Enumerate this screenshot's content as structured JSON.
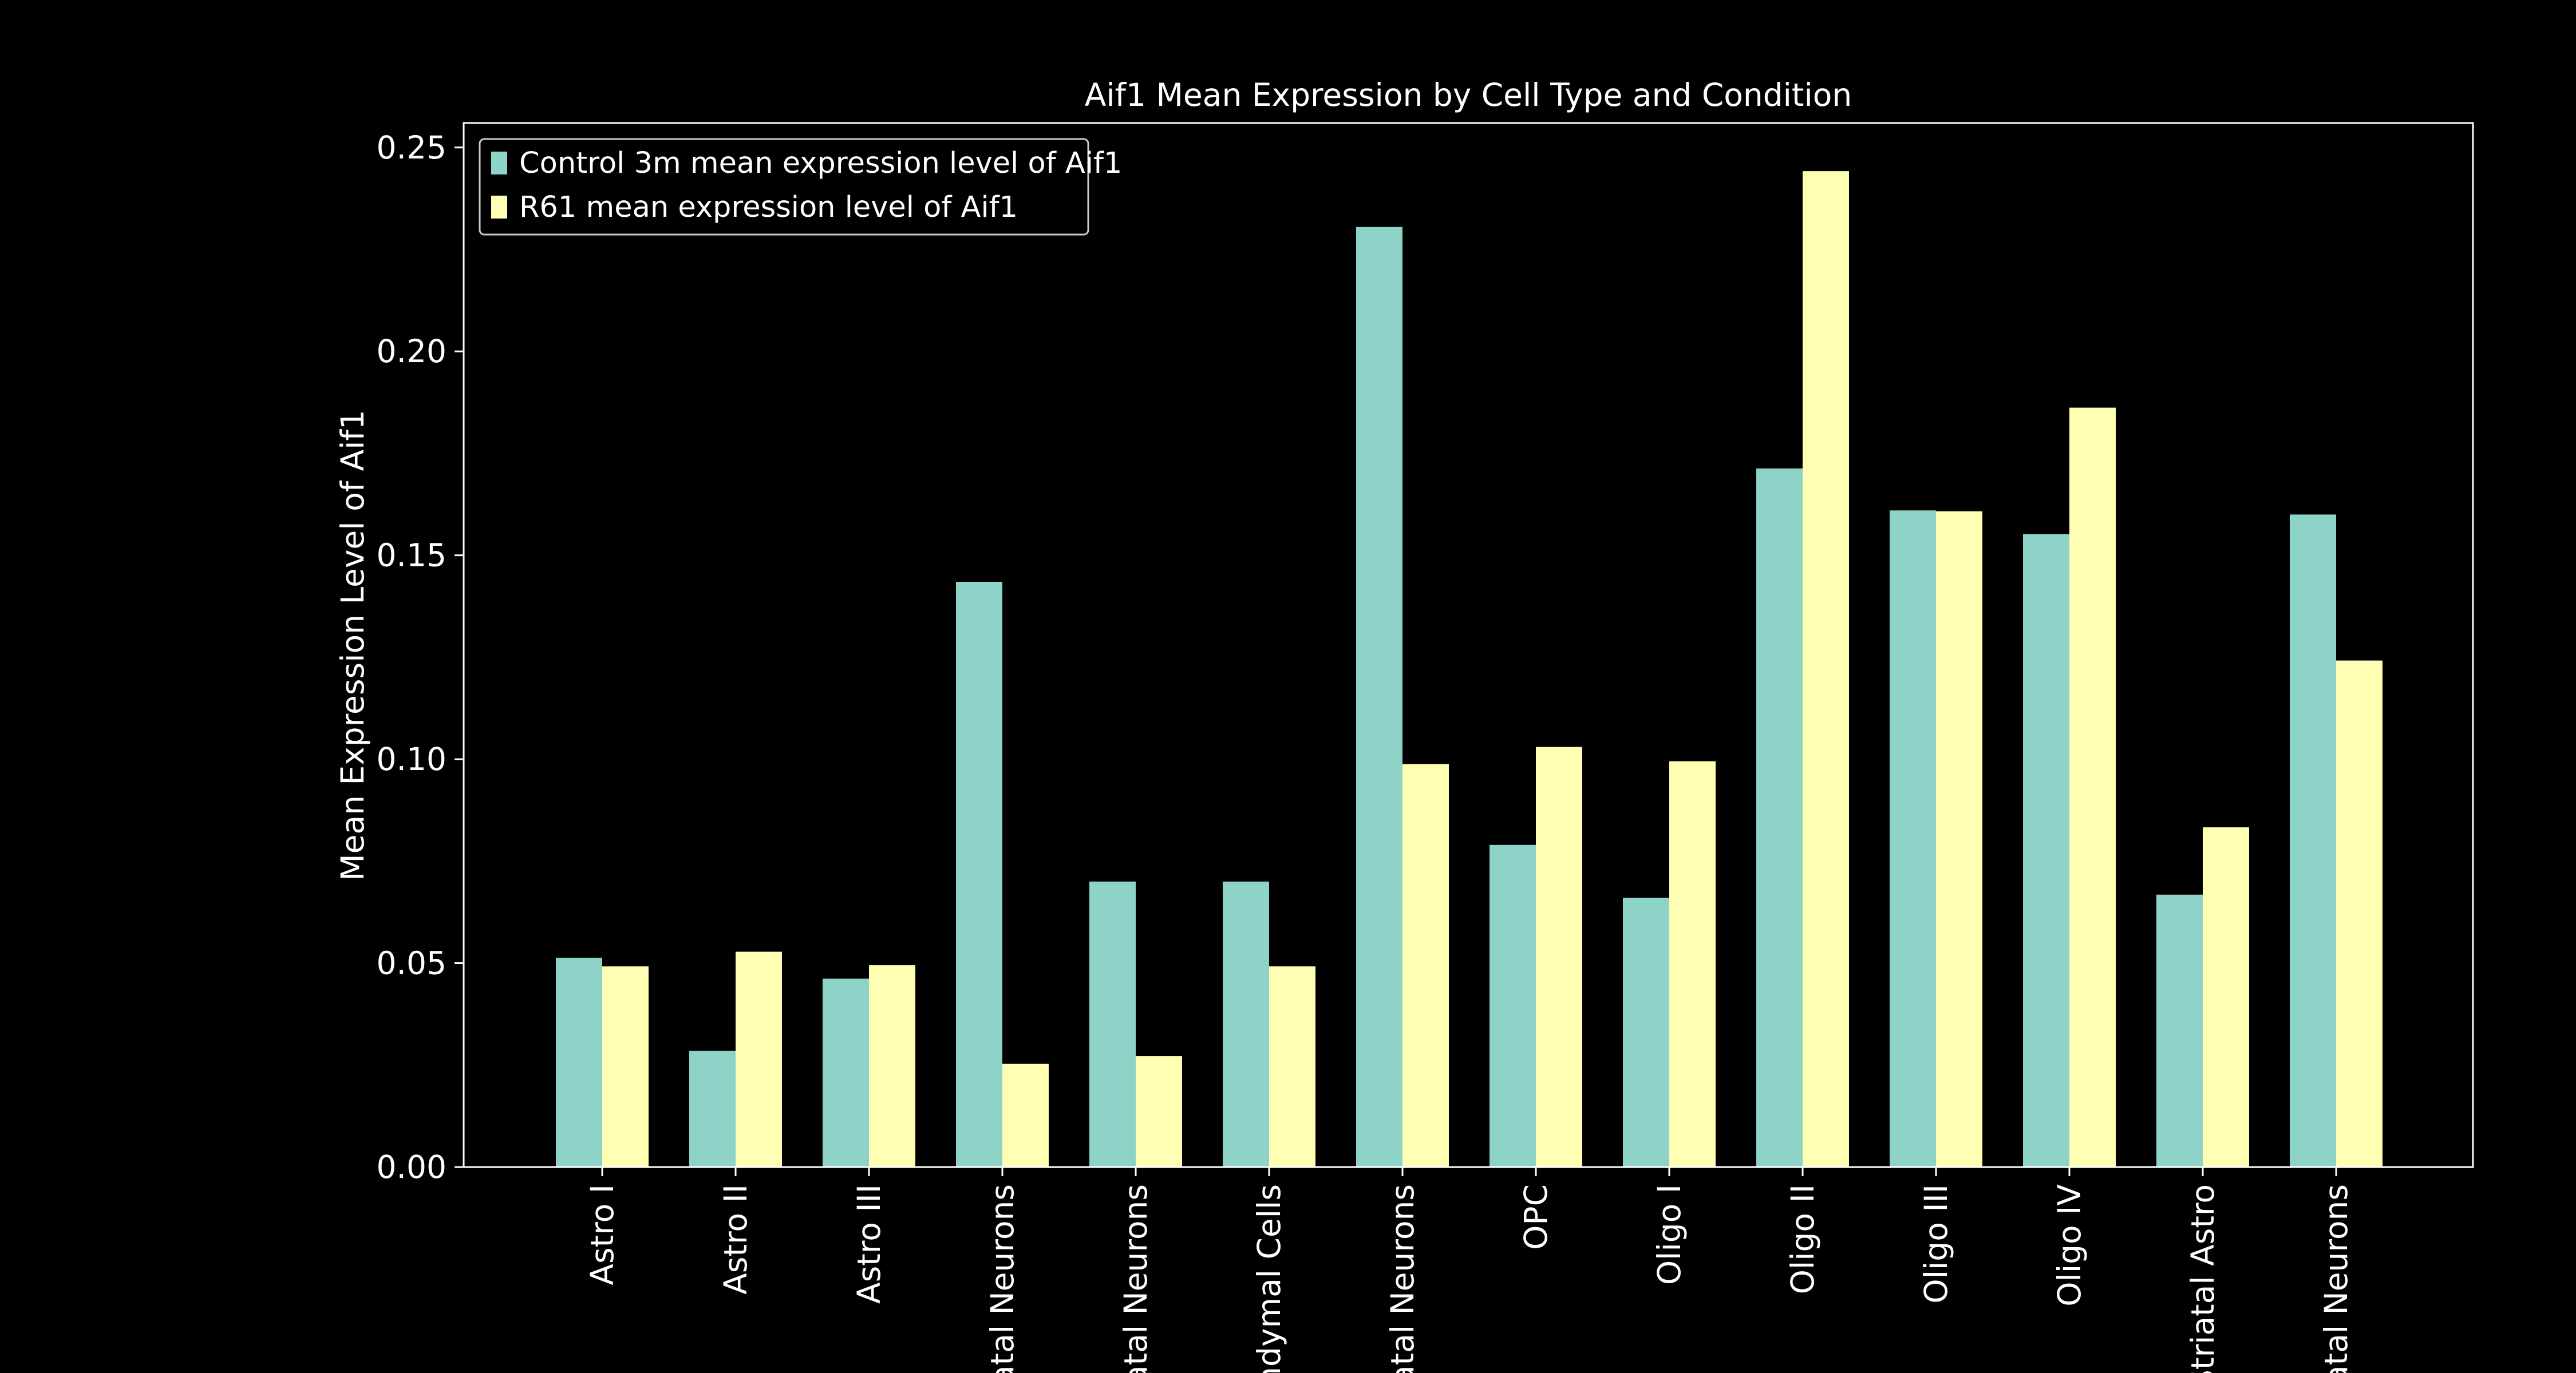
{
  "chart_data": {
    "type": "bar",
    "title": "Aif1 Mean Expression by Cell Type and Condition",
    "xlabel": "",
    "ylabel": "Mean Expression Level of Aif1",
    "ylim": [
      0,
      0.256
    ],
    "yticks": [
      "0.00",
      "0.05",
      "0.10",
      "0.15",
      "0.20",
      "0.25"
    ],
    "grid": false,
    "legend_position": "top-left",
    "categories": [
      "Astro I",
      "Astro II",
      "Astro III",
      "atal Neurons",
      "atal Neurons",
      "ndymal Cells",
      "atal Neurons",
      "OPC",
      "Oligo I",
      "Oligo II",
      "Oligo III",
      "Oligo IV",
      "Striatal Astro",
      "atal Neurons"
    ],
    "series": [
      {
        "name": "Control 3m mean expression level of Aif1",
        "color": "#8dd3c7",
        "values": [
          0.0513,
          0.0285,
          0.0462,
          0.1435,
          0.07,
          0.07,
          0.2305,
          0.079,
          0.066,
          0.1713,
          0.161,
          0.1552,
          0.0668,
          0.16
        ]
      },
      {
        "name": "R61 mean expression level of Aif1",
        "color": "#ffffb3",
        "values": [
          0.0492,
          0.0528,
          0.0495,
          0.0253,
          0.0272,
          0.0492,
          0.0988,
          0.103,
          0.0995,
          0.2442,
          0.1608,
          0.1862,
          0.0833,
          0.1242
        ]
      }
    ]
  },
  "colors": {
    "background": "#000000",
    "foreground": "#ffffff"
  }
}
